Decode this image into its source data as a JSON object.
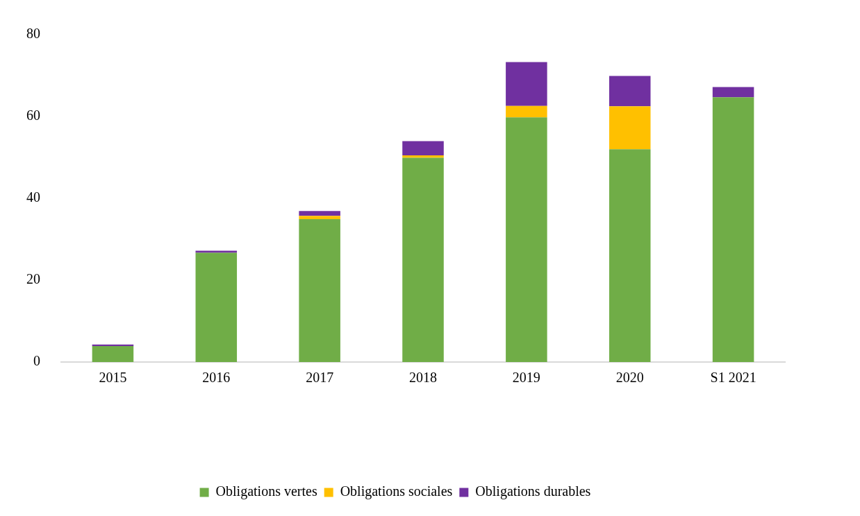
{
  "chart_data": {
    "type": "bar",
    "stacked": true,
    "categories": [
      "2015",
      "2016",
      "2017",
      "2018",
      "2019",
      "2020",
      "S1 2021"
    ],
    "series": [
      {
        "name": "Obligations vertes",
        "color": "#70ad47",
        "values": [
          3.9,
          26.7,
          34.9,
          49.9,
          59.8,
          52.0,
          64.7
        ]
      },
      {
        "name": "Obligations sociales",
        "color": "#ffc000",
        "values": [
          0,
          0,
          0.8,
          0.6,
          2.8,
          10.5,
          0
        ]
      },
      {
        "name": "Obligations durables",
        "color": "#7030a0",
        "values": [
          0.4,
          0.5,
          1.2,
          3.5,
          10.7,
          7.4,
          2.5
        ]
      }
    ],
    "ylim": [
      0,
      80
    ],
    "yticks": [
      0,
      20,
      40,
      60,
      80
    ],
    "grid": false,
    "legend": "bottom"
  }
}
